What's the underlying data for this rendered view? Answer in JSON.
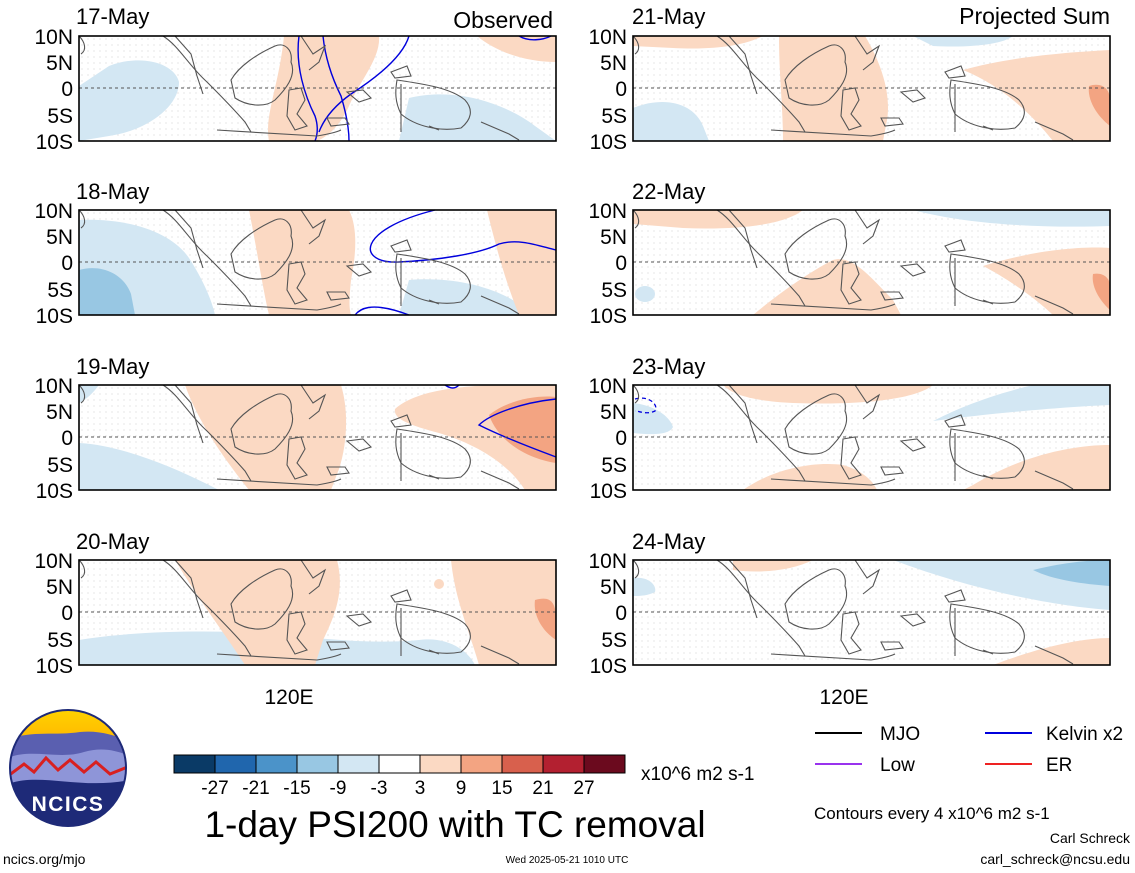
{
  "panels": {
    "left": {
      "header": "Observed",
      "dates": [
        "17-May",
        "18-May",
        "19-May",
        "20-May"
      ]
    },
    "right": {
      "header": "Projected Sum",
      "dates": [
        "21-May",
        "22-May",
        "23-May",
        "24-May"
      ]
    }
  },
  "axes": {
    "y_ticks": [
      "10N",
      "5N",
      "0",
      "5S",
      "10S"
    ],
    "x_tick": "120E"
  },
  "colorbar": {
    "labels": [
      "-27",
      "-21",
      "-15",
      "-9",
      "-3",
      "3",
      "9",
      "15",
      "21",
      "27"
    ],
    "colors": [
      "#0a3a66",
      "#2066ad",
      "#4b93c9",
      "#98c7e3",
      "#d3e7f3",
      "#ffffff",
      "#fbd9c3",
      "#f3a482",
      "#d8604d",
      "#b32030",
      "#6b0a1e"
    ],
    "units": "x10^6 m2 s-1"
  },
  "title": "1-day PSI200 with TC removal",
  "legend": [
    {
      "label": "MJO",
      "color": "#000000"
    },
    {
      "label": "Kelvin x2",
      "color": "#0000dd"
    },
    {
      "label": "Low",
      "color": "#9933ee"
    },
    {
      "label": "ER",
      "color": "#ee2222"
    }
  ],
  "contour_note": "Contours every 4 x10^6 m2 s-1",
  "credit": {
    "author": "Carl Schreck",
    "email": "carl_schreck@ncsu.edu"
  },
  "footer": {
    "site": "ncics.org/mjo",
    "timestamp": "Wed 2025-05-21 1010 UTC"
  },
  "logo": {
    "text": "NCICS"
  }
}
